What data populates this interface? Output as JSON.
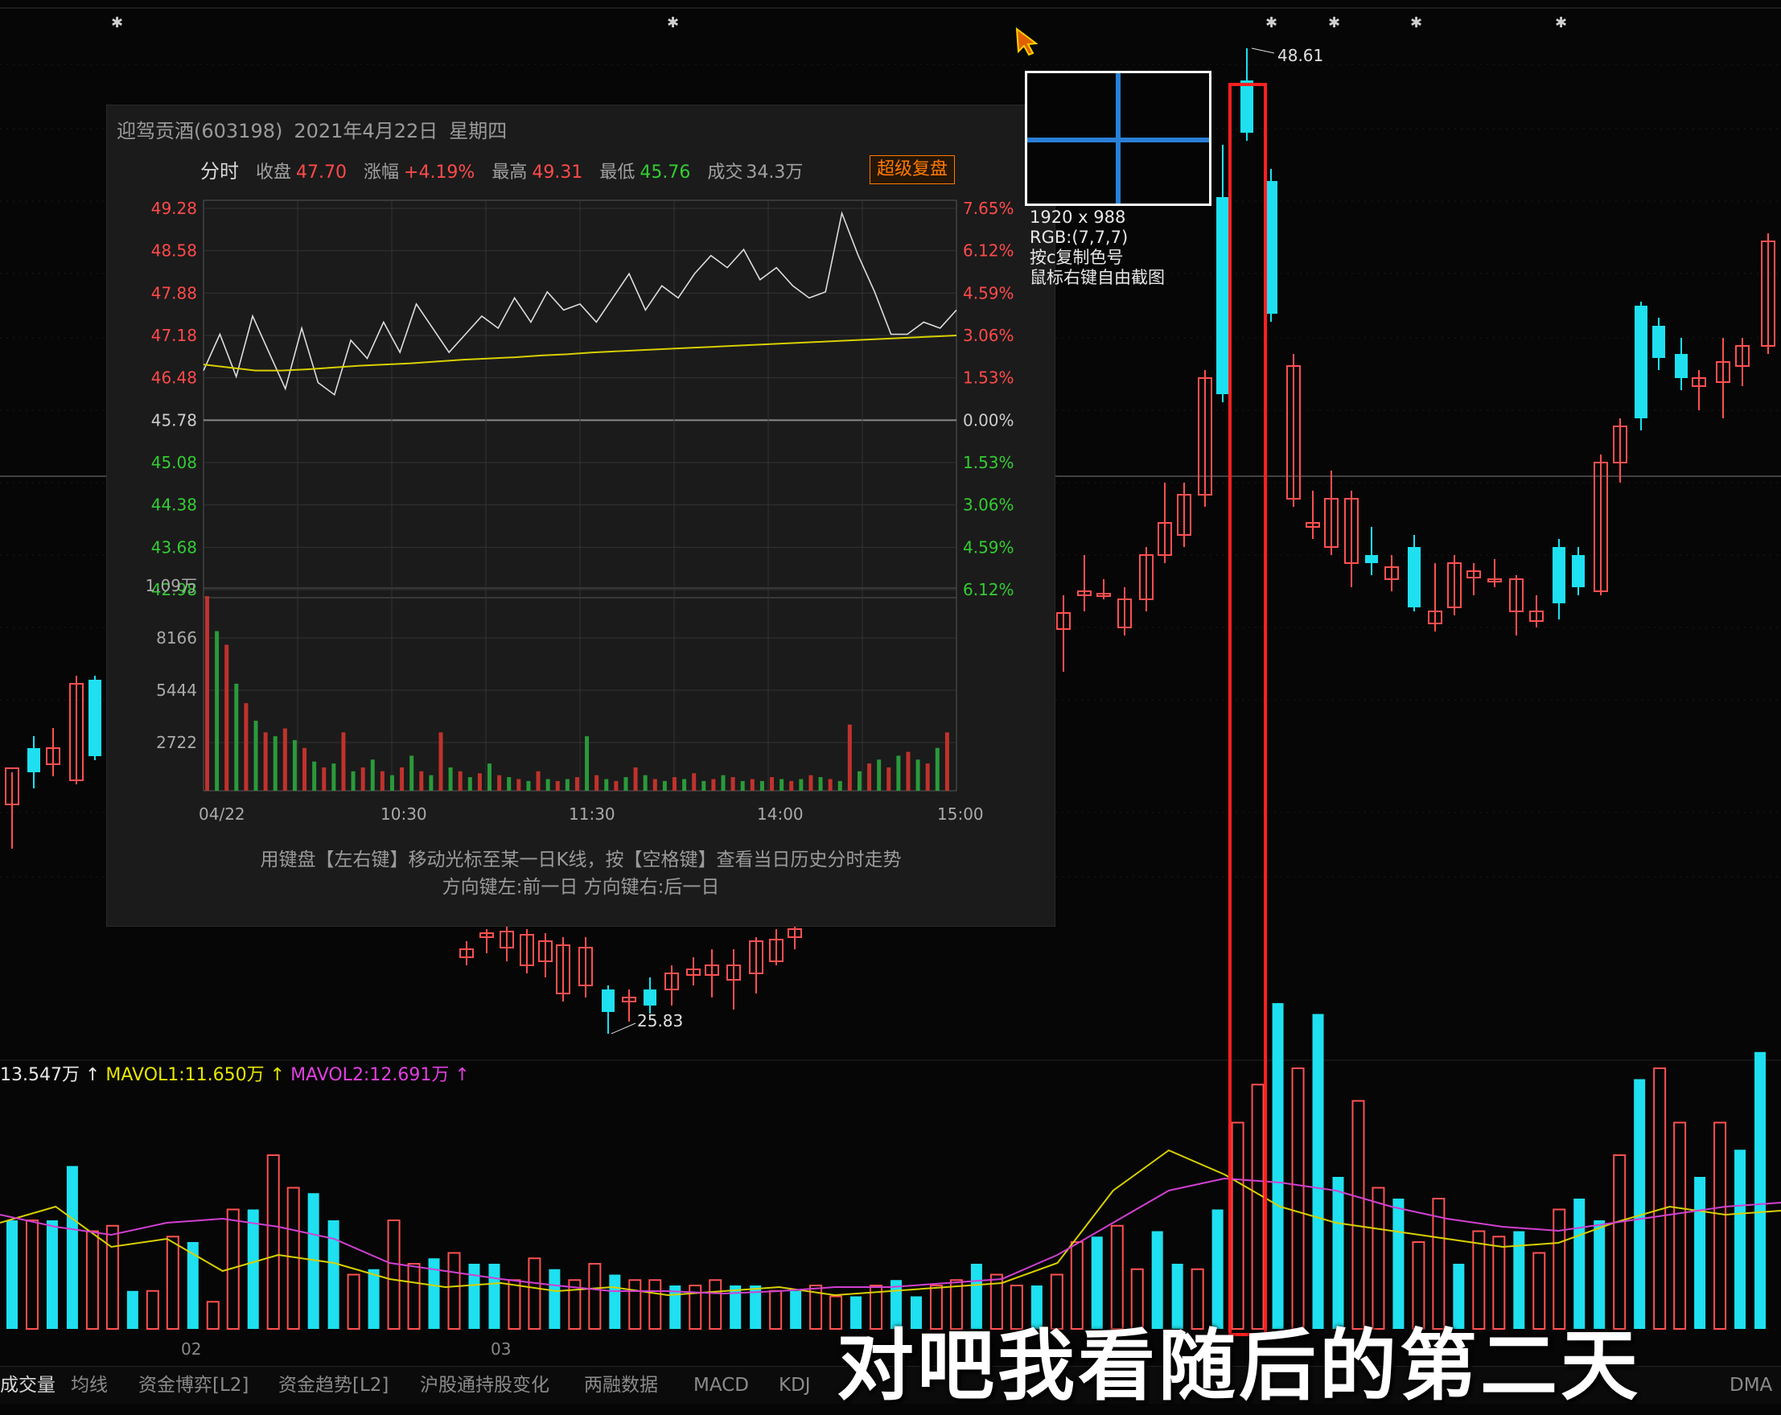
{
  "popup": {
    "stock_name": "迎驾贡酒(603198)",
    "date": "2021年4月22日",
    "weekday": "星期四",
    "mode_label": "分时",
    "close_label": "收盘",
    "close_value": "47.70",
    "change_label": "涨幅",
    "change_value": "+4.19%",
    "high_label": "最高",
    "high_value": "49.31",
    "low_label": "最低",
    "low_value": "45.76",
    "turnover_label": "成交",
    "turnover_value": "34.3万",
    "replay_button": "超级复盘",
    "hint_line1": "用键盘【左右键】移动光标至某一日K线，按【空格键】查看当日历史分时走势",
    "hint_line2": "方向键左:前一日    方向键右:后一日"
  },
  "chart_data": [
    {
      "type": "line",
      "title": "",
      "x_ticks": [
        "04/22",
        "10:30",
        "11:30",
        "14:00",
        "15:00"
      ],
      "price_ticks": [
        "49.28",
        "48.58",
        "47.88",
        "47.18",
        "46.48",
        "45.78",
        "45.08",
        "44.38",
        "43.68",
        "42.98"
      ],
      "pct_ticks": [
        "7.65%",
        "6.12%",
        "4.59%",
        "3.06%",
        "1.53%",
        "0.00%",
        "1.53%",
        "3.06%",
        "4.59%",
        "6.12%"
      ],
      "volume_ticks": [
        "1.09万",
        "8166",
        "5444",
        "2722"
      ],
      "ylim": [
        42.98,
        49.28
      ],
      "prev_close": 45.78,
      "series": [
        {
          "color": "#dddddd",
          "values": [
            46.6,
            47.2,
            46.5,
            47.5,
            46.9,
            46.3,
            47.3,
            46.4,
            46.2,
            47.1,
            46.8,
            47.4,
            46.9,
            47.7,
            47.3,
            46.9,
            47.2,
            47.5,
            47.3,
            47.8,
            47.4,
            47.9,
            47.6,
            47.7,
            47.4,
            47.8,
            48.2,
            47.6,
            48.0,
            47.8,
            48.2,
            48.5,
            48.3,
            48.6,
            48.1,
            48.3,
            48.0,
            47.8,
            47.9,
            49.2,
            48.5,
            47.9,
            47.2,
            47.2,
            47.4,
            47.3,
            47.6
          ]
        },
        {
          "color": "#d8d000",
          "values": [
            46.7,
            46.65,
            46.6,
            46.6,
            46.62,
            46.65,
            46.68,
            46.7,
            46.72,
            46.75,
            46.78,
            46.8,
            46.82,
            46.85,
            46.87,
            46.9,
            46.92,
            46.94,
            46.96,
            46.98,
            47.0,
            47.02,
            47.04,
            47.06,
            47.08,
            47.1,
            47.12,
            47.14,
            47.16,
            47.18
          ]
        }
      ]
    }
  ],
  "magnifier": {
    "size": "1920 x 988",
    "rgb": "RGB:(7,7,7)",
    "copy_hint": "按c复制色号",
    "capture_hint": "鼠标右键自由截图"
  },
  "annotations": {
    "high_price": "48.61",
    "low_price": "25.83"
  },
  "volume_legend": {
    "vol": "13.547万",
    "mavol1": "MAVOL1:11.650万",
    "mavol2": "MAVOL2:12.691万"
  },
  "x_axis": {
    "month1": "02",
    "month2": "03"
  },
  "tabs": [
    "成交量",
    "均线",
    "资金博弈[L2]",
    "资金趋势[L2]",
    "沪股通持股变化",
    "两融数据",
    "MACD",
    "KDJ",
    "DMA"
  ],
  "subtitle": "对吧我看随后的第二天",
  "colors": {
    "up": "#ff5050",
    "down": "#1ee0f0",
    "ma1": "#d8d000",
    "ma2": "#d040d0",
    "highlight": "#ff2020"
  }
}
